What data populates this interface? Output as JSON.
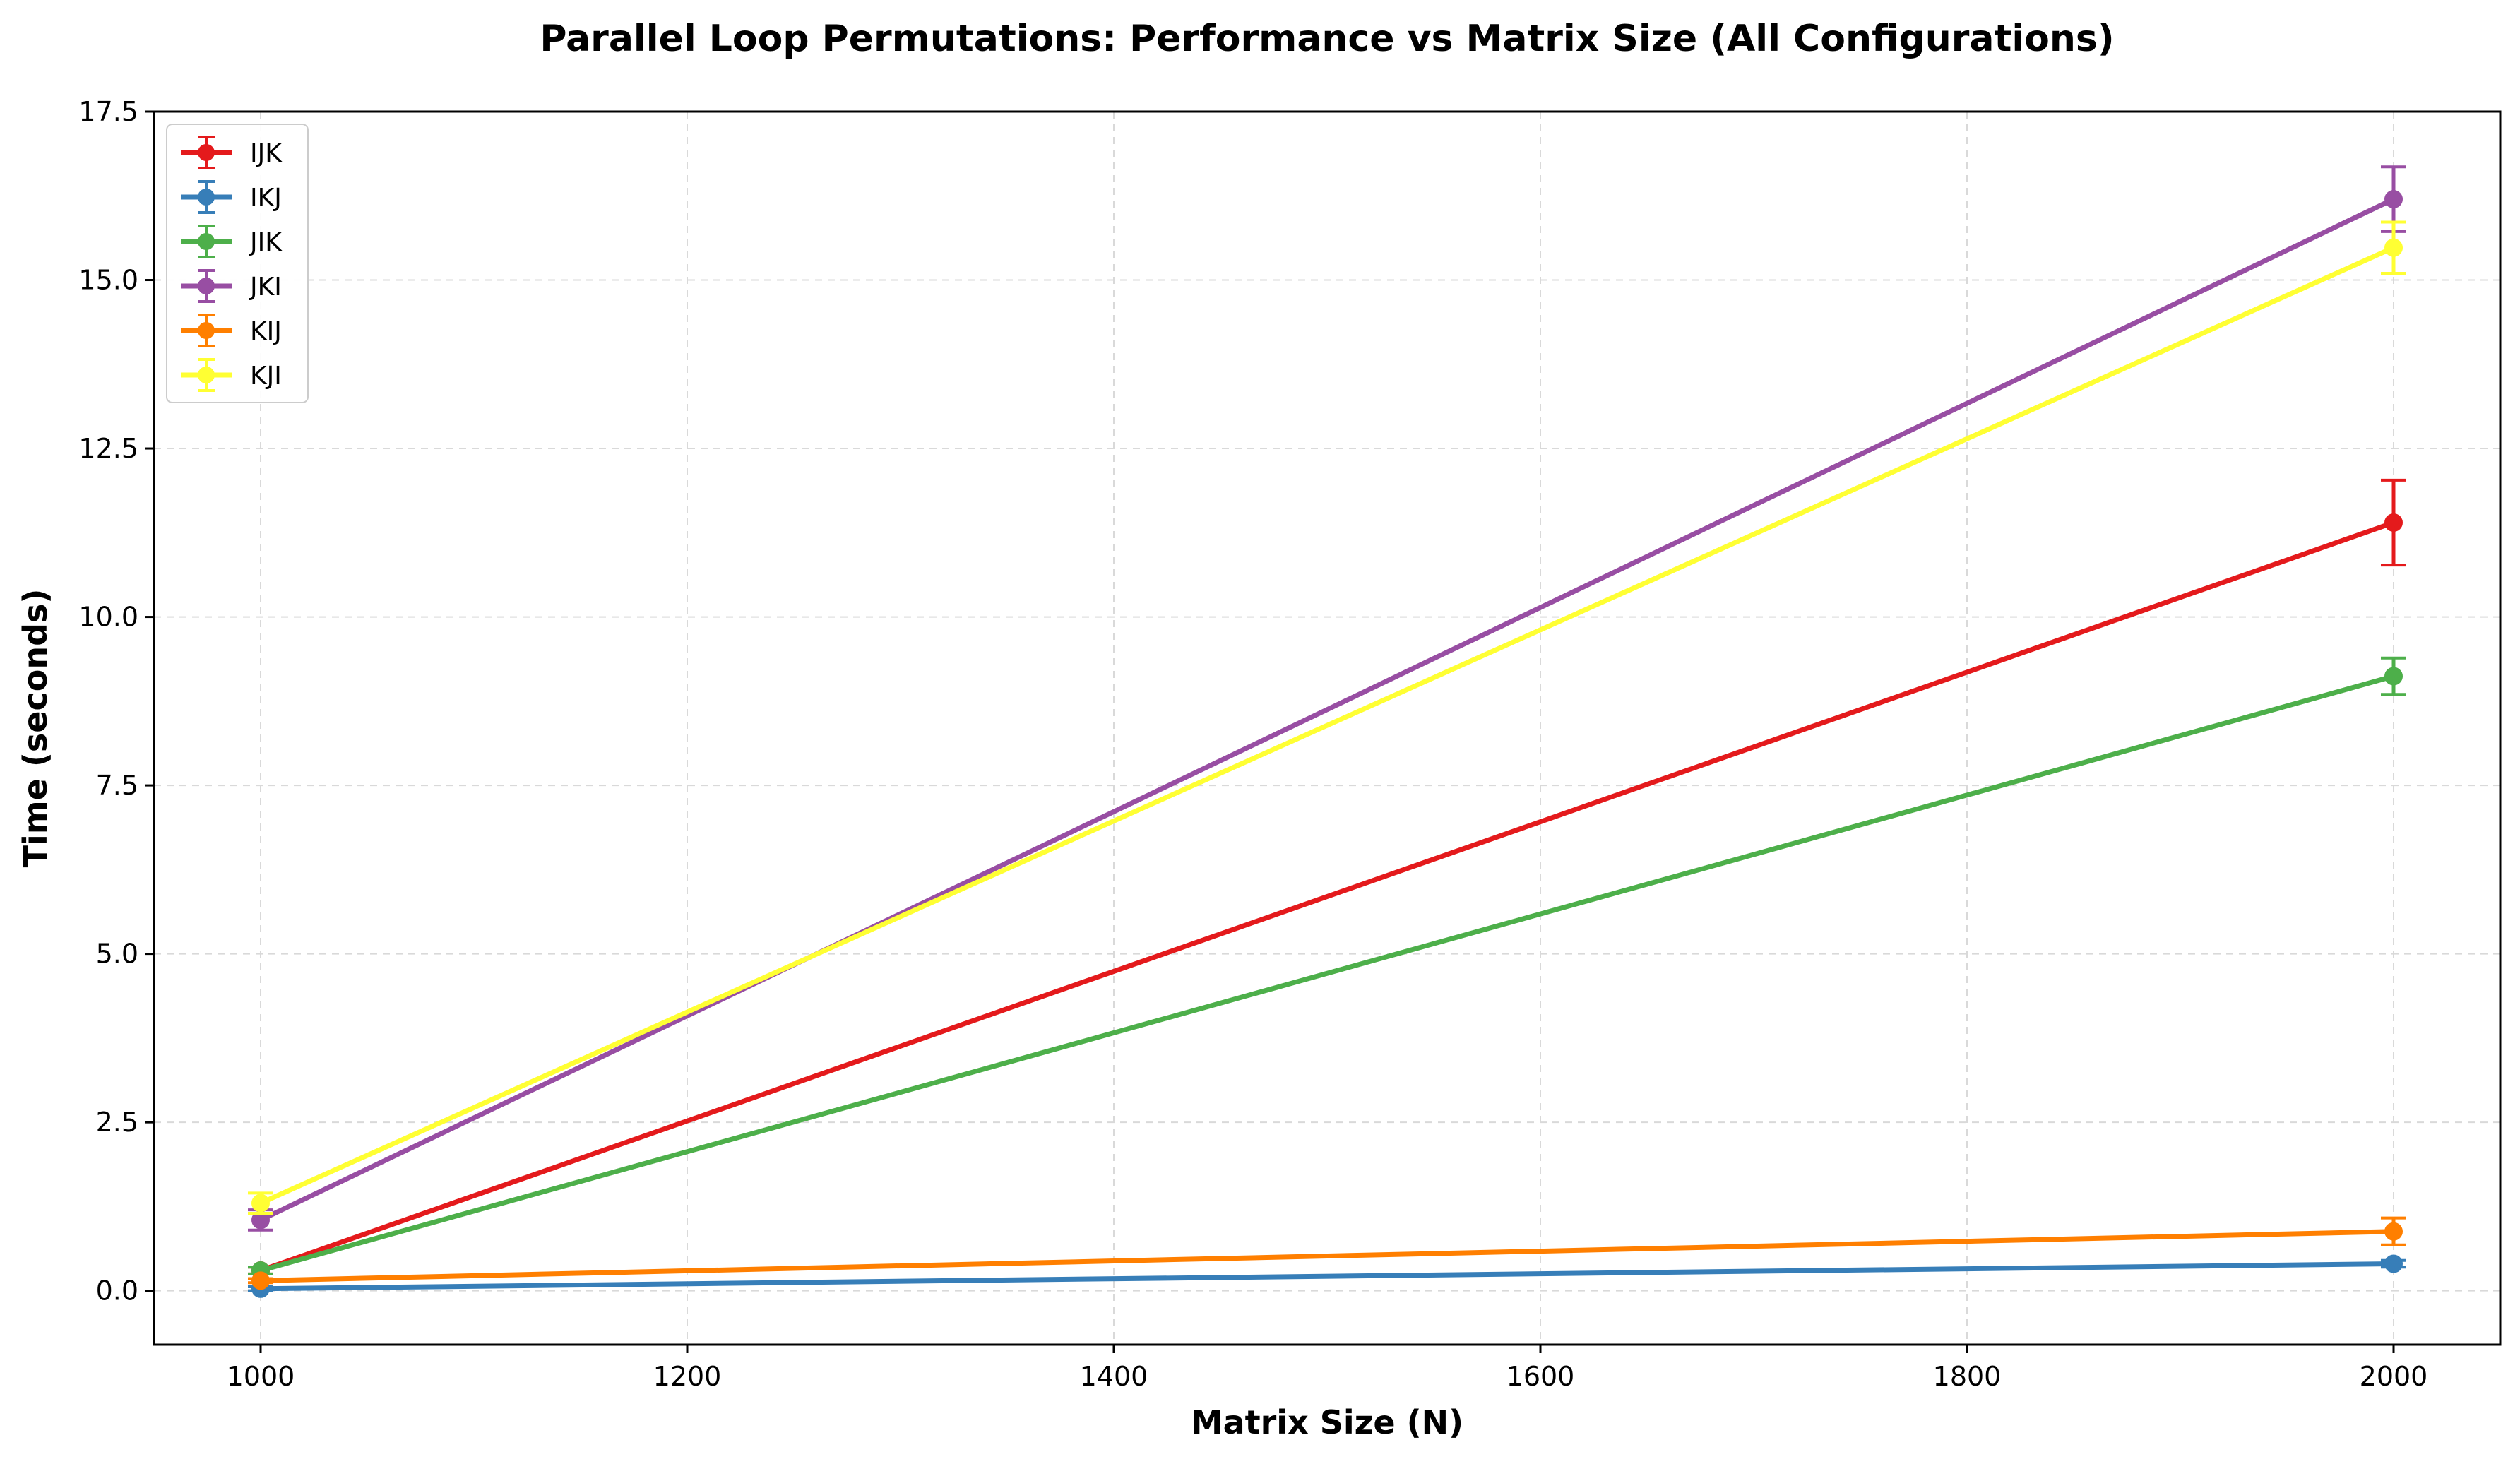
{
  "chart_data": {
    "type": "line",
    "title": "Parallel Loop Permutations: Performance vs Matrix Size (All Configurations)",
    "xlabel": "Matrix Size (N)",
    "ylabel": "Time (seconds)",
    "xlim": [
      950,
      2050
    ],
    "ylim": [
      -0.8,
      17.5
    ],
    "xticks": [
      1000,
      1200,
      1400,
      1600,
      1800,
      2000
    ],
    "xtick_labels": [
      "1000",
      "1200",
      "1400",
      "1600",
      "1800",
      "2000"
    ],
    "yticks": [
      0.0,
      2.5,
      5.0,
      7.5,
      10.0,
      12.5,
      15.0,
      17.5
    ],
    "ytick_labels": [
      "0.0",
      "2.5",
      "5.0",
      "7.5",
      "10.0",
      "12.5",
      "15.0",
      "17.5"
    ],
    "grid": true,
    "legend_position": "top-left",
    "x": [
      1000,
      2000
    ],
    "series": [
      {
        "name": "IJK",
        "color": "#e41a1c",
        "values": [
          0.3,
          11.4
        ],
        "errors": [
          0.05,
          0.63
        ]
      },
      {
        "name": "IKJ",
        "color": "#377eb8",
        "values": [
          0.03,
          0.4
        ],
        "errors": [
          0.03,
          0.05
        ]
      },
      {
        "name": "JIK",
        "color": "#4daf4a",
        "values": [
          0.3,
          9.12
        ],
        "errors": [
          0.05,
          0.27
        ]
      },
      {
        "name": "JKI",
        "color": "#984ea3",
        "values": [
          1.05,
          16.2
        ],
        "errors": [
          0.15,
          0.48
        ]
      },
      {
        "name": "KIJ",
        "color": "#ff7f00",
        "values": [
          0.15,
          0.88
        ],
        "errors": [
          0.03,
          0.2
        ]
      },
      {
        "name": "KJI",
        "color": "#ffff33",
        "values": [
          1.3,
          15.48
        ],
        "errors": [
          0.15,
          0.38
        ]
      }
    ]
  }
}
